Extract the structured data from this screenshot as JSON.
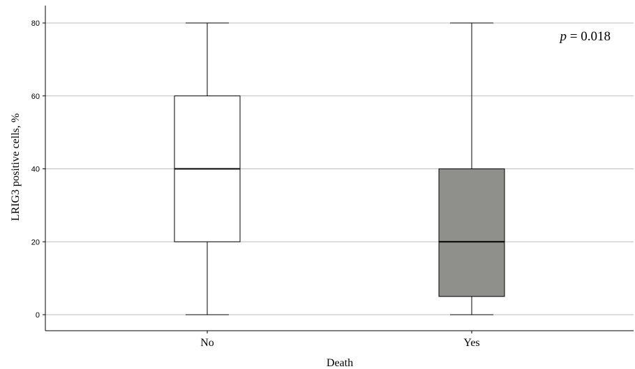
{
  "chart_data": {
    "type": "box",
    "categories": [
      "No",
      "Yes"
    ],
    "boxes": [
      {
        "category": "No",
        "min": 0,
        "q1": 20,
        "median": 40,
        "q3": 60,
        "max": 80,
        "fill": "#ffffff"
      },
      {
        "category": "Yes",
        "min": 0,
        "q1": 5,
        "median": 20,
        "q3": 40,
        "max": 80,
        "fill": "#8f8f8b"
      }
    ],
    "xlabel": "Death",
    "ylabel": "LRIG3 positive cells, %",
    "ylim": [
      0,
      80
    ],
    "yticks": [
      "0",
      "20",
      "40",
      "60",
      "80"
    ],
    "grid": true,
    "annotation": {
      "symbol": "p",
      "text": " = 0.018"
    }
  }
}
